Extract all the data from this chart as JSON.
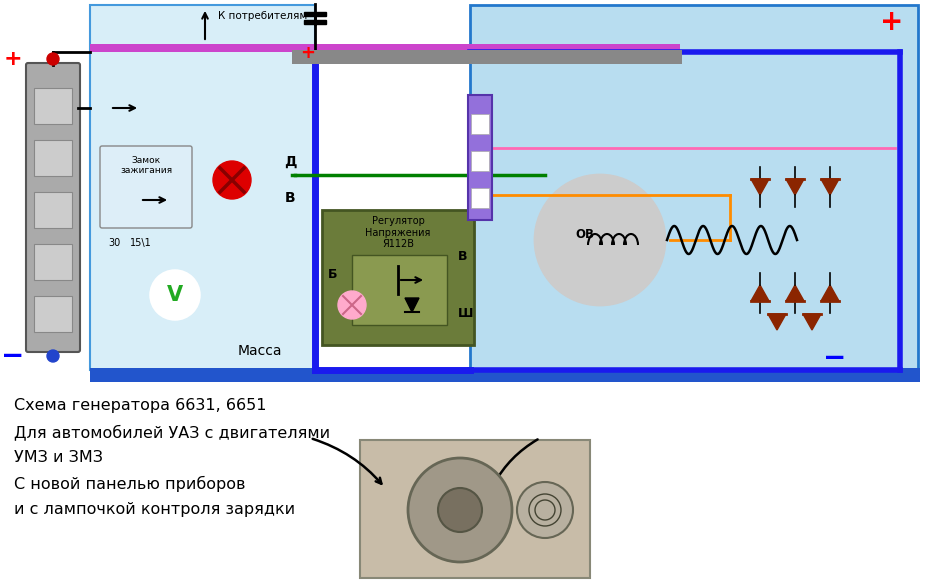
{
  "bg_color": "#ffffff",
  "fig_width": 9.25,
  "fig_height": 5.86,
  "title_lines": [
    "Схема генератора 6631, 6651",
    "Для автомобилей УАЗ с двигателями",
    "УМЗ и ЗМЗ",
    "С новой панелью приборов",
    "и с лампочкой контроля зарядки"
  ],
  "text_consumer": "К потребителям",
  "text_mass": "Масса",
  "text_lock": "Замок\nзажигания",
  "text_regulator": "Регулятор\nНапряжения\nЯ112В",
  "text_30": "30",
  "text_15": "15\\1",
  "text_D": "Д",
  "text_B_up": "В",
  "text_B_right": "В",
  "text_B_label": "Б",
  "text_Sh": "Ш",
  "text_OV": "ОВ",
  "colors": {
    "blue_wire": "#1a1aee",
    "green_wire": "#008000",
    "pink_wire": "#ff69b4",
    "orange_wire": "#ff8c00",
    "red_color": "#ff0000",
    "brown_diode": "#8b2500",
    "regulator_bg": "#6b7c3a",
    "connector_purple": "#9370db",
    "panel_blue": "#b8ddf0",
    "gray_bus": "#888888"
  }
}
